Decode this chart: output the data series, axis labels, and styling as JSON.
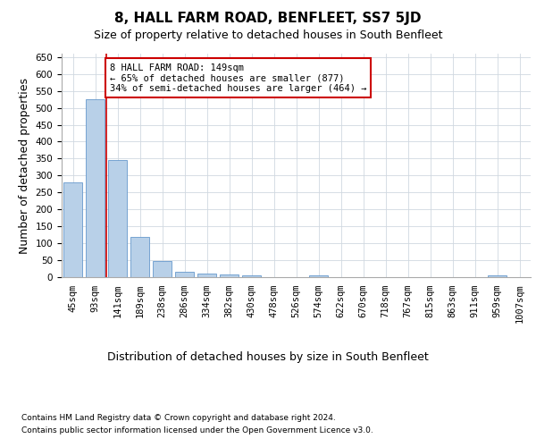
{
  "title": "8, HALL FARM ROAD, BENFLEET, SS7 5JD",
  "subtitle": "Size of property relative to detached houses in South Benfleet",
  "xlabel": "Distribution of detached houses by size in South Benfleet",
  "ylabel": "Number of detached properties",
  "categories": [
    "45sqm",
    "93sqm",
    "141sqm",
    "189sqm",
    "238sqm",
    "286sqm",
    "334sqm",
    "382sqm",
    "430sqm",
    "478sqm",
    "526sqm",
    "574sqm",
    "622sqm",
    "670sqm",
    "718sqm",
    "767sqm",
    "815sqm",
    "863sqm",
    "911sqm",
    "959sqm",
    "1007sqm"
  ],
  "values": [
    280,
    525,
    345,
    120,
    48,
    16,
    10,
    8,
    5,
    0,
    0,
    5,
    0,
    0,
    0,
    0,
    0,
    0,
    0,
    5,
    0
  ],
  "bar_color": "#b8d0e8",
  "bar_edgecolor": "#6699cc",
  "red_line_index": 2,
  "red_line_color": "#cc0000",
  "annotation_text": "8 HALL FARM ROAD: 149sqm\n← 65% of detached houses are smaller (877)\n34% of semi-detached houses are larger (464) →",
  "annotation_box_edgecolor": "#cc0000",
  "ylim": [
    0,
    660
  ],
  "yticks": [
    0,
    50,
    100,
    150,
    200,
    250,
    300,
    350,
    400,
    450,
    500,
    550,
    600,
    650
  ],
  "footnote1": "Contains HM Land Registry data © Crown copyright and database right 2024.",
  "footnote2": "Contains public sector information licensed under the Open Government Licence v3.0.",
  "background_color": "#ffffff",
  "grid_color": "#d0d8e0",
  "title_fontsize": 11,
  "subtitle_fontsize": 9,
  "axis_label_fontsize": 9,
  "tick_fontsize": 7.5,
  "annotation_fontsize": 7.5,
  "footnote_fontsize": 6.5
}
